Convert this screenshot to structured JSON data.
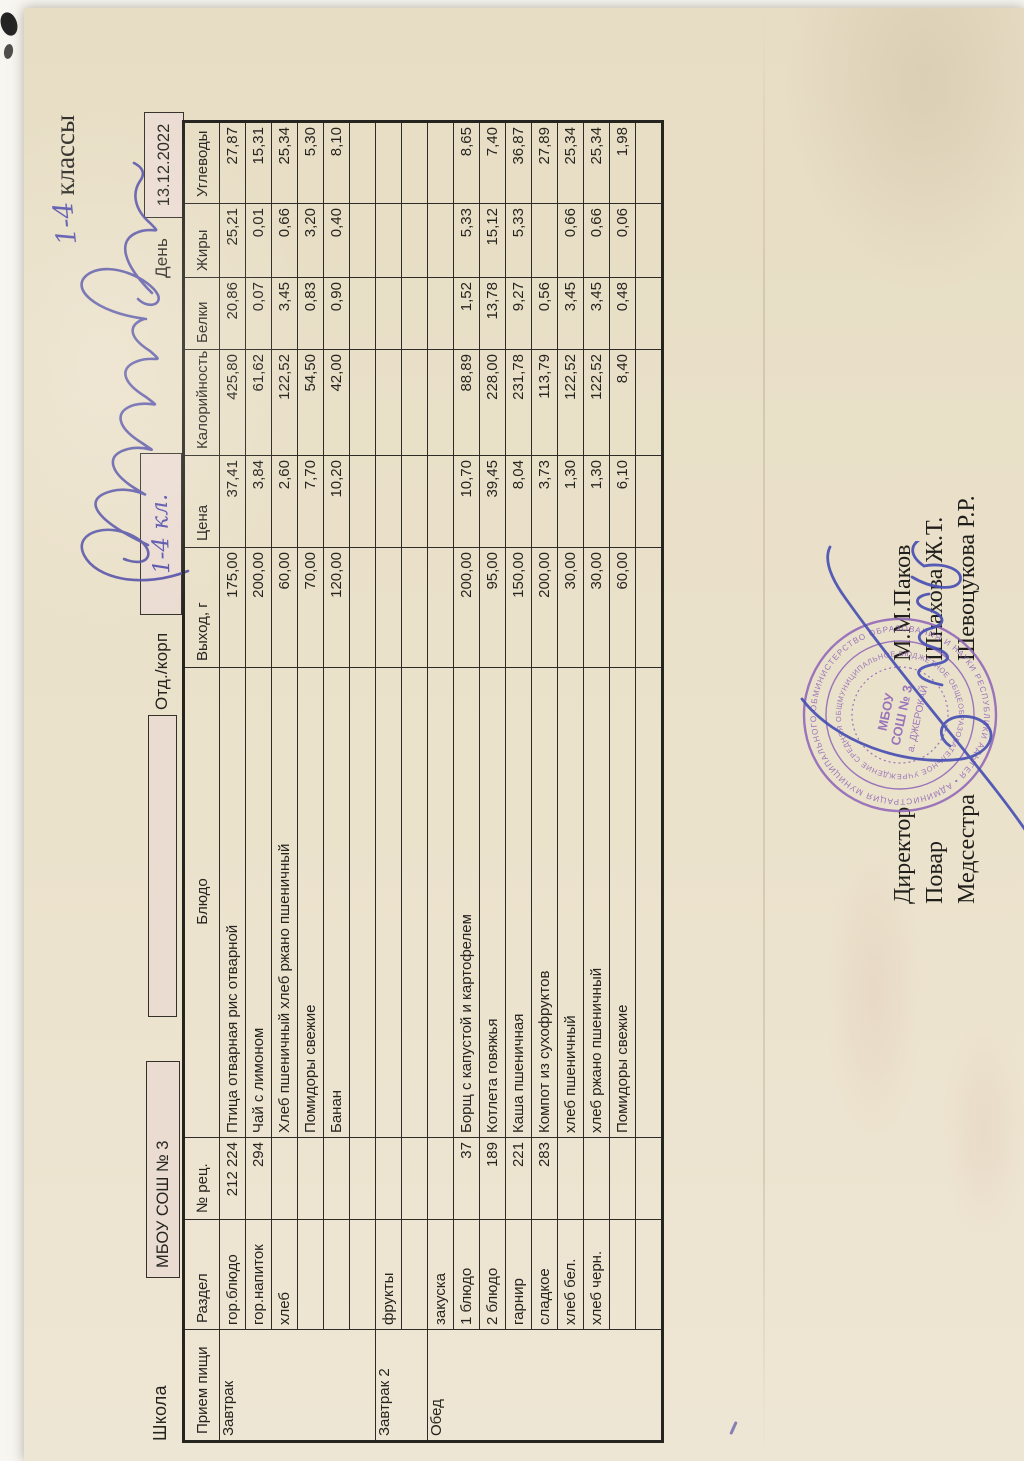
{
  "form": {
    "school_label": "Школа",
    "school_value": "МБОУ  СОШ № 3",
    "dept_label": "Отд./корп",
    "dept_value_handwritten": "1-4 кл.",
    "day_label": "День",
    "day_value": "13.12.2022",
    "classes_handwritten": "1-4",
    "classes_label": "классы"
  },
  "table": {
    "headers": [
      "Прием пищи",
      "Раздел",
      "№ рец.",
      "Блюдо",
      "Выход, г",
      "Цена",
      "Калорийность",
      "Белки",
      "Жиры",
      "Углеводы"
    ],
    "meal_groups": [
      {
        "label": "Завтрак",
        "rows": [
          {
            "razdel": "гор.блюдо",
            "rec": "212 224",
            "dish": "Птица отварная рис отварной",
            "out": "175,00",
            "price": "37,41",
            "kcal": "425,80",
            "protein": "20,86",
            "fat": "25,21",
            "carbs": "27,87"
          },
          {
            "razdel": "гор.напиток",
            "rec": "294",
            "dish": "Чай с лимоном",
            "out": "200,00",
            "price": "3,84",
            "kcal": "61,62",
            "protein": "0,07",
            "fat": "0,01",
            "carbs": "15,31"
          },
          {
            "razdel": "хлеб",
            "rec": "",
            "dish": "Хлеб пшеничный хлеб ржано пшеничный",
            "out": "60,00",
            "price": "2,60",
            "kcal": "122,52",
            "protein": "3,45",
            "fat": "0,66",
            "carbs": "25,34"
          },
          {
            "razdel": "",
            "rec": "",
            "dish": "Помидоры свежие",
            "out": "70,00",
            "price": "7,70",
            "kcal": "54,50",
            "protein": "0,83",
            "fat": "3,20",
            "carbs": "5,30"
          },
          {
            "razdel": "",
            "rec": "",
            "dish": "Банан",
            "out": "120,00",
            "price": "10,20",
            "kcal": "42,00",
            "protein": "0,90",
            "fat": "0,40",
            "carbs": "8,10"
          },
          {
            "razdel": "",
            "rec": "",
            "dish": "",
            "out": "",
            "price": "",
            "kcal": "",
            "protein": "",
            "fat": "",
            "carbs": ""
          }
        ]
      },
      {
        "label": "Завтрак 2",
        "rows": [
          {
            "razdel": "фрукты",
            "rec": "",
            "dish": "",
            "out": "",
            "price": "",
            "kcal": "",
            "protein": "",
            "fat": "",
            "carbs": ""
          },
          {
            "razdel": "",
            "rec": "",
            "dish": "",
            "out": "",
            "price": "",
            "kcal": "",
            "protein": "",
            "fat": "",
            "carbs": ""
          }
        ]
      },
      {
        "label": "Обед",
        "rows": [
          {
            "razdel": "закуска",
            "rec": "",
            "dish": "",
            "out": "",
            "price": "",
            "kcal": "",
            "protein": "",
            "fat": "",
            "carbs": ""
          },
          {
            "razdel": "1 блюдо",
            "rec": "37",
            "dish": "Борщ с капустой и картофелем",
            "out": "200,00",
            "price": "10,70",
            "kcal": "88,89",
            "protein": "1,52",
            "fat": "5,33",
            "carbs": "8,65"
          },
          {
            "razdel": "2 блюдо",
            "rec": "189",
            "dish": "Котлета говяжья",
            "out": "95,00",
            "price": "39,45",
            "kcal": "228,00",
            "protein": "13,78",
            "fat": "15,12",
            "carbs": "7,40"
          },
          {
            "razdel": "гарнир",
            "rec": "221",
            "dish": "Каша пшеничная",
            "out": "150,00",
            "price": "8,04",
            "kcal": "231,78",
            "protein": "9,27",
            "fat": "5,33",
            "carbs": "36,87"
          },
          {
            "razdel": "сладкое",
            "rec": "283",
            "dish": "Компот из сухофруктов",
            "out": "200,00",
            "price": "3,73",
            "kcal": "113,79",
            "protein": "0,56",
            "fat": "",
            "carbs": "27,89"
          },
          {
            "razdel": "хлеб бел.",
            "rec": "",
            "dish": "хлеб пшеничный",
            "out": "30,00",
            "price": "1,30",
            "kcal": "122,52",
            "protein": "3,45",
            "fat": "0,66",
            "carbs": "25,34"
          },
          {
            "razdel": "хлеб черн.",
            "rec": "",
            "dish": "хлеб ржано пшеничный",
            "out": "30,00",
            "price": "1,30",
            "kcal": "122,52",
            "protein": "3,45",
            "fat": "0,66",
            "carbs": "25,34"
          },
          {
            "razdel": "",
            "rec": "",
            "dish": "Помидоры свежие",
            "out": "60,00",
            "price": "6,10",
            "kcal": "8,40",
            "protein": "0,48",
            "fat": "0,06",
            "carbs": "1,98"
          },
          {
            "razdel": "",
            "rec": "",
            "dish": "",
            "out": "",
            "price": "",
            "kcal": "",
            "protein": "",
            "fat": "",
            "carbs": ""
          }
        ]
      }
    ]
  },
  "signatures": [
    {
      "role": "Директор",
      "name": "М.М.Паков"
    },
    {
      "role": "Повар",
      "name": "Шнахова Ж.Т."
    },
    {
      "role": "Медсестра",
      "name": "Шевоцукова Р.Р."
    }
  ],
  "stamp": {
    "outer_ring": "МИНИСТЕРСТВО ОБРАЗОВАНИЯ И НАУКИ РЕСПУБЛИКИ АДЫГЕЯ • АДМИНИСТРАЦИЯ МУНИЦИПАЛЬНОГО ОБРАЗОВАНИЯ «ШОВГЕНОВСКИЙ РАЙОН» •",
    "middle_ring": "МУНИЦИПАЛЬНОЕ БЮДЖЕТНОЕ ОБЩЕОБРАЗОВАТЕЛЬНОЕ УЧРЕЖДЕНИЕ СРЕДНЯЯ ОБЩЕОБРАЗОВАТЕЛЬНАЯ ШКОЛА № 3 • ОГРН 1020 •",
    "center_line1": "МБОУ",
    "center_line2": "СОШ № 3",
    "center_line3": "а. ДЖЕРОКАЙ"
  },
  "colors": {
    "paper": "#ebe2cc",
    "table_line": "#2e2b26",
    "ink_purple": "#5551ad",
    "ink_blue": "#4850b4",
    "stamp_violet": "#9066b8"
  }
}
